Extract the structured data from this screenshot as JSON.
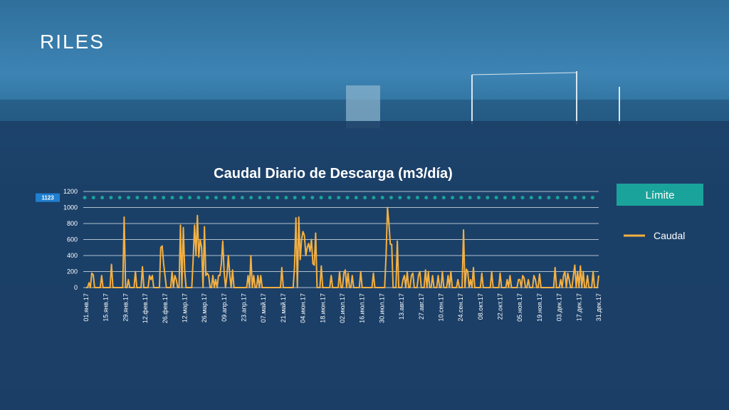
{
  "header": {
    "title": "RILES"
  },
  "chart_data": {
    "type": "line",
    "title": "Caudal Diario de Descarga (m3/día)",
    "categories": [
      "01.янв.17",
      null,
      null,
      null,
      null,
      null,
      null,
      null,
      null,
      null,
      null,
      null,
      null,
      null,
      "15.янв.17",
      null,
      null,
      null,
      null,
      null,
      null,
      null,
      null,
      null,
      null,
      null,
      null,
      null,
      "29.янв.17",
      null,
      null,
      null,
      null,
      null,
      null,
      null,
      null,
      null,
      null,
      null,
      null,
      null,
      "12.фев.17",
      null,
      null,
      null,
      null,
      null,
      null,
      null,
      null,
      null,
      null,
      null,
      null,
      null,
      "26.фев.17",
      null,
      null,
      null,
      null,
      null,
      null,
      null,
      null,
      null,
      null,
      null,
      null,
      null,
      "12.мар.17",
      null,
      null,
      null,
      null,
      null,
      null,
      null,
      null,
      null,
      null,
      null,
      null,
      null,
      "26.мар.17",
      null,
      null,
      null,
      null,
      null,
      null,
      null,
      null,
      null,
      null,
      null,
      null,
      null,
      "09.апр.17",
      null,
      null,
      null,
      null,
      null,
      null,
      null,
      null,
      null,
      null,
      null,
      null,
      null,
      "23.апр.17",
      null,
      null,
      null,
      null,
      null,
      null,
      null,
      null,
      null,
      null,
      null,
      null,
      null,
      "07.май.17",
      null,
      null,
      null,
      null,
      null,
      null,
      null,
      null,
      null,
      null,
      null,
      null,
      null,
      "21.май.17",
      null,
      null,
      null,
      null,
      null,
      null,
      null,
      null,
      null,
      null,
      null,
      null,
      null,
      "04.июн.17",
      null,
      null,
      null,
      null,
      null,
      null,
      null,
      null,
      null,
      null,
      null,
      null,
      null,
      "18.июн.17",
      null,
      null,
      null,
      null,
      null,
      null,
      null,
      null,
      null,
      null,
      null,
      null,
      null,
      "02.июл.17",
      null,
      null,
      null,
      null,
      null,
      null,
      null,
      null,
      null,
      null,
      null,
      null,
      null,
      "16.июл.17",
      null,
      null,
      null,
      null,
      null,
      null,
      null,
      null,
      null,
      null,
      null,
      null,
      null,
      "30.июл.17",
      null,
      null,
      null,
      null,
      null,
      null,
      null,
      null,
      null,
      null,
      null,
      null,
      null,
      "13.авг.17",
      null,
      null,
      null,
      null,
      null,
      null,
      null,
      null,
      null,
      null,
      null,
      null,
      null,
      "27.авг.17",
      null,
      null,
      null,
      null,
      null,
      null,
      null,
      null,
      null,
      null,
      null,
      null,
      null,
      "10.сен.17",
      null,
      null,
      null,
      null,
      null,
      null,
      null,
      null,
      null,
      null,
      null,
      null,
      null,
      "24.сен.17",
      null,
      null,
      null,
      null,
      null,
      null,
      null,
      null,
      null,
      null,
      null,
      null,
      null,
      "08.окт.17",
      null,
      null,
      null,
      null,
      null,
      null,
      null,
      null,
      null,
      null,
      null,
      null,
      null,
      "22.окт.17",
      null,
      null,
      null,
      null,
      null,
      null,
      null,
      null,
      null,
      null,
      null,
      null,
      null,
      "05.ноя.17",
      null,
      null,
      null,
      null,
      null,
      null,
      null,
      null,
      null,
      null,
      null,
      null,
      null,
      "19.ноя.17",
      null,
      null,
      null,
      null,
      null,
      null,
      null,
      null,
      null,
      null,
      null,
      null,
      null,
      "03.дек.17",
      null,
      null,
      null,
      null,
      null,
      null,
      null,
      null,
      null,
      null,
      null,
      null,
      null,
      "17.дек.17",
      null,
      null,
      null,
      null,
      null,
      null,
      null,
      null,
      null,
      null,
      null,
      null,
      null,
      "31.дек.17"
    ],
    "series": [
      {
        "name": "Caudal",
        "color": "#f5b041",
        "values": [
          0,
          0,
          60,
          0,
          180,
          160,
          0,
          0,
          0,
          0,
          0,
          150,
          0,
          0,
          0,
          0,
          0,
          0,
          290,
          0,
          0,
          0,
          0,
          0,
          0,
          0,
          0,
          880,
          0,
          0,
          100,
          0,
          0,
          0,
          0,
          200,
          0,
          0,
          0,
          0,
          260,
          0,
          0,
          0,
          0,
          150,
          100,
          150,
          0,
          0,
          0,
          0,
          0,
          500,
          520,
          300,
          150,
          0,
          0,
          0,
          0,
          200,
          0,
          150,
          100,
          0,
          0,
          780,
          0,
          750,
          200,
          0,
          0,
          0,
          0,
          0,
          350,
          780,
          400,
          900,
          380,
          600,
          500,
          0,
          760,
          150,
          180,
          150,
          0,
          0,
          150,
          0,
          100,
          0,
          150,
          150,
          300,
          580,
          200,
          0,
          150,
          400,
          150,
          0,
          220,
          0,
          0,
          0,
          0,
          0,
          0,
          0,
          0,
          0,
          0,
          150,
          0,
          400,
          0,
          150,
          0,
          0,
          150,
          0,
          150,
          0,
          0,
          0,
          0,
          0,
          0,
          0,
          0,
          0,
          0,
          0,
          0,
          0,
          0,
          250,
          0,
          0,
          0,
          0,
          0,
          0,
          0,
          0,
          260,
          870,
          0,
          880,
          350,
          600,
          700,
          650,
          400,
          500,
          550,
          450,
          600,
          300,
          280,
          680,
          0,
          0,
          0,
          270,
          0,
          0,
          0,
          0,
          0,
          0,
          150,
          0,
          0,
          0,
          0,
          0,
          200,
          0,
          0,
          180,
          220,
          0,
          180,
          0,
          0,
          150,
          0,
          0,
          0,
          0,
          0,
          200,
          0,
          0,
          0,
          0,
          0,
          0,
          0,
          0,
          180,
          0,
          0,
          0,
          0,
          0,
          0,
          0,
          0,
          400,
          1000,
          800,
          540,
          540,
          0,
          0,
          0,
          580,
          0,
          0,
          0,
          100,
          150,
          0,
          200,
          0,
          0,
          150,
          180,
          0,
          0,
          0,
          150,
          200,
          0,
          0,
          0,
          220,
          0,
          200,
          0,
          0,
          150,
          0,
          0,
          0,
          150,
          0,
          0,
          200,
          0,
          0,
          0,
          150,
          0,
          200,
          0,
          0,
          0,
          0,
          100,
          0,
          0,
          0,
          720,
          0,
          230,
          200,
          0,
          100,
          0,
          250,
          0,
          0,
          0,
          0,
          0,
          180,
          0,
          0,
          0,
          0,
          0,
          0,
          200,
          0,
          0,
          0,
          0,
          0,
          180,
          0,
          0,
          0,
          0,
          100,
          0,
          150,
          0,
          0,
          0,
          0,
          0,
          100,
          100,
          0,
          150,
          120,
          0,
          0,
          100,
          0,
          0,
          0,
          150,
          100,
          0,
          0,
          170,
          0,
          0,
          0,
          0,
          0,
          0,
          0,
          0,
          0,
          0,
          250,
          0,
          0,
          0,
          100,
          0,
          150,
          200,
          0,
          180,
          100,
          0,
          0,
          150,
          280,
          0,
          200,
          0,
          270,
          0,
          200,
          0,
          0,
          150,
          0,
          0,
          0,
          200,
          0,
          0,
          0,
          150
        ]
      }
    ],
    "limit": {
      "name": "Límite",
      "value": 1123,
      "color": "#1aa39a"
    },
    "ylim": [
      0,
      1200
    ],
    "yticks": [
      0,
      200,
      400,
      600,
      800,
      1000,
      1200
    ],
    "grid": true
  }
}
